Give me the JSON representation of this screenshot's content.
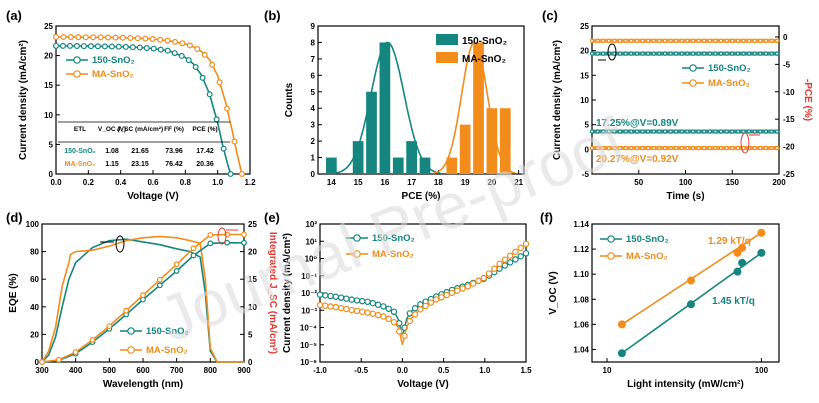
{
  "colors": {
    "teal": "#14857F",
    "orange": "#F28C1B",
    "red": "#E03A2F",
    "axis": "#000000"
  },
  "watermark": "Journal Pre-proof",
  "chart_data": [
    {
      "panel": "(a)",
      "type": "line",
      "xlabel": "Voltage (V)",
      "ylabel": "Current density (mA/cm²)",
      "xlim": [
        0,
        1.2
      ],
      "ylim": [
        0,
        25
      ],
      "xticks": [
        "0.0",
        "0.2",
        "0.4",
        "0.6",
        "0.8",
        "1.0",
        "1.2"
      ],
      "yticks": [
        "0",
        "5",
        "10",
        "15",
        "20",
        "25"
      ],
      "legend": [
        "150-SnO₂",
        "MA-SnO₂"
      ],
      "series": [
        {
          "name": "150-SnO₂",
          "color": "teal",
          "x": [
            0,
            0.1,
            0.2,
            0.3,
            0.4,
            0.5,
            0.6,
            0.7,
            0.8,
            0.85,
            0.9,
            0.95,
            1.0,
            1.03,
            1.06,
            1.08
          ],
          "y": [
            21.65,
            21.63,
            21.6,
            21.55,
            21.5,
            21.4,
            21.2,
            20.8,
            19.7,
            18.6,
            16.7,
            13.5,
            8.6,
            5.0,
            1.8,
            0
          ]
        },
        {
          "name": "MA-SnO₂",
          "color": "orange",
          "x": [
            0,
            0.1,
            0.2,
            0.3,
            0.4,
            0.5,
            0.6,
            0.7,
            0.8,
            0.85,
            0.9,
            0.95,
            1.0,
            1.05,
            1.09,
            1.12,
            1.15
          ],
          "y": [
            23.15,
            23.13,
            23.1,
            23.07,
            23.02,
            22.95,
            22.8,
            22.5,
            22.0,
            21.5,
            20.7,
            19.3,
            16.6,
            12.0,
            7.3,
            3.4,
            0
          ]
        }
      ],
      "table": {
        "headers": [
          "ETL",
          "V_OC (V)",
          "J_SC (mA/cm²)",
          "FF (%)",
          "PCE (%)"
        ],
        "rows": [
          [
            "150-SnO₂",
            "1.08",
            "21.65",
            "73.96",
            "17.42"
          ],
          [
            "MA-SnO₂",
            "1.15",
            "23.15",
            "76.42",
            "20.36"
          ]
        ]
      }
    },
    {
      "panel": "(b)",
      "type": "bar",
      "xlabel": "PCE (%)",
      "ylabel": "Counts",
      "xlim": [
        13.5,
        21.2
      ],
      "ylim": [
        0,
        9
      ],
      "xticks": [
        "14",
        "15",
        "16",
        "17",
        "18",
        "19",
        "20",
        "21"
      ],
      "yticks": [
        "0",
        "1",
        "2",
        "3",
        "4",
        "5",
        "6",
        "7",
        "8",
        "9"
      ],
      "legend": [
        "150-SnO₂",
        "MA-SnO₂"
      ],
      "series": [
        {
          "name": "150-SnO₂",
          "color": "teal",
          "bins": [
            14,
            15,
            15.5,
            16,
            16.5,
            17,
            17.5
          ],
          "counts": [
            1,
            2,
            5,
            8,
            1,
            2,
            1
          ],
          "fit_mean": 16.1,
          "fit_sigma": 0.62,
          "fit_peak": 8
        },
        {
          "name": "MA-SnO₂",
          "color": "orange",
          "bins": [
            18.5,
            19,
            19.5,
            20,
            20.5
          ],
          "counts": [
            1,
            3,
            8,
            4,
            4
          ],
          "fit_mean": 19.35,
          "fit_sigma": 0.48,
          "fit_peak": 8
        }
      ]
    },
    {
      "panel": "(c)",
      "type": "line",
      "xlabel": "Time (s)",
      "ylabel": "Current density (mA/cm²)",
      "ylabel_right": "-PCE (%)",
      "xlim": [
        0,
        200
      ],
      "ylim": [
        -5,
        25
      ],
      "ylim_right": [
        -25,
        2
      ],
      "xticks": [
        "50",
        "100",
        "150",
        "200"
      ],
      "yticks": [
        "-5",
        "0",
        "5",
        "10",
        "15",
        "20",
        "25"
      ],
      "yticks_right": [
        "-25",
        "-20",
        "-15",
        "-10",
        "-5",
        "0"
      ],
      "legend": [
        "150-SnO₂",
        "MA-SnO₂"
      ],
      "annotations": [
        "17.25%@V=0.89V",
        "20.27%@V=0.92V"
      ],
      "series": [
        {
          "name": "150-SnO₂ J",
          "color": "teal",
          "axis": "left",
          "value": 19.4
        },
        {
          "name": "MA-SnO₂ J",
          "color": "orange",
          "axis": "left",
          "value": 22.0
        },
        {
          "name": "150-SnO₂ PCE",
          "color": "teal",
          "axis": "right",
          "value": -17.25
        },
        {
          "name": "MA-SnO₂ PCE",
          "color": "orange",
          "axis": "right",
          "value": -20.27
        }
      ]
    },
    {
      "panel": "(d)",
      "type": "line",
      "xlabel": "Wavelength (nm)",
      "ylabel": "EQE (%)",
      "ylabel_right": "Integrated J_SC (mA/cm²)",
      "xlim": [
        300,
        900
      ],
      "ylim": [
        0,
        100
      ],
      "ylim_right": [
        0,
        25
      ],
      "xticks": [
        "300",
        "400",
        "500",
        "600",
        "700",
        "800",
        "900"
      ],
      "yticks": [
        "0",
        "20",
        "40",
        "60",
        "80",
        "100"
      ],
      "yticks_right": [
        "0",
        "5",
        "10",
        "15",
        "20",
        "25"
      ],
      "legend": [
        "150-SnO₂",
        "MA-SnO₂"
      ],
      "series": [
        {
          "name": "150-SnO₂ EQE",
          "color": "teal",
          "axis": "left",
          "x": [
            300,
            320,
            340,
            360,
            380,
            400,
            450,
            500,
            550,
            600,
            650,
            700,
            740,
            770,
            785,
            800,
            820,
            900
          ],
          "y": [
            0,
            5,
            18,
            40,
            60,
            72,
            83,
            88,
            89,
            87,
            85,
            82,
            80,
            76,
            50,
            8,
            0,
            0
          ]
        },
        {
          "name": "MA-SnO₂ EQE",
          "color": "orange",
          "axis": "left",
          "x": [
            300,
            320,
            340,
            360,
            380,
            385,
            400,
            450,
            500,
            550,
            600,
            650,
            700,
            740,
            770,
            785,
            800,
            820,
            900
          ],
          "y": [
            0,
            8,
            25,
            55,
            72,
            78,
            80,
            81,
            84,
            88,
            90,
            91,
            90,
            88,
            86,
            60,
            10,
            0,
            0
          ]
        },
        {
          "name": "150-SnO₂ Integrated J_SC",
          "color": "teal",
          "axis": "right",
          "x": [
            300,
            350,
            400,
            450,
            500,
            550,
            600,
            650,
            700,
            750,
            800,
            850,
            900
          ],
          "y": [
            0,
            0.3,
            1.5,
            3.6,
            6.0,
            8.6,
            11.3,
            13.9,
            16.5,
            19.3,
            21.5,
            21.6,
            21.6
          ]
        },
        {
          "name": "MA-SnO₂ Integrated J_SC",
          "color": "orange",
          "axis": "right",
          "x": [
            300,
            350,
            400,
            450,
            500,
            550,
            600,
            650,
            700,
            750,
            800,
            850,
            900
          ],
          "y": [
            0,
            0.4,
            1.8,
            4.0,
            6.5,
            9.3,
            12.1,
            14.9,
            17.7,
            20.6,
            23.0,
            23.1,
            23.1
          ]
        }
      ]
    },
    {
      "panel": "(e)",
      "type": "scatter",
      "xlabel": "Voltage (V)",
      "ylabel": "Current density (mA/cm²)",
      "xlim": [
        -1.0,
        1.5
      ],
      "ylog": true,
      "ylim_exp": [
        -6,
        2
      ],
      "xticks": [
        "-1.0",
        "-0.5",
        "0.0",
        "0.5",
        "1.0",
        "1.5"
      ],
      "yticks": [
        "10⁻⁶",
        "10⁻⁵",
        "10⁻⁴",
        "10⁻³",
        "10⁻²",
        "10⁻¹",
        "10⁰",
        "10¹",
        "10²"
      ],
      "legend": [
        "150-SnO₂",
        "MA-SnO₂"
      ],
      "series": [
        {
          "name": "150-SnO₂",
          "color": "teal",
          "x": [
            -1.0,
            -0.8,
            -0.6,
            -0.4,
            -0.2,
            -0.1,
            -0.05,
            0,
            0.05,
            0.1,
            0.2,
            0.4,
            0.6,
            0.8,
            1.0,
            1.2,
            1.5
          ],
          "y": [
            0.008,
            0.006,
            0.004,
            0.003,
            0.0015,
            0.0008,
            0.0003,
            3e-05,
            0.0003,
            0.0008,
            0.002,
            0.006,
            0.015,
            0.03,
            0.07,
            0.3,
            2
          ]
        },
        {
          "name": "MA-SnO₂",
          "color": "orange",
          "x": [
            -1.0,
            -0.8,
            -0.6,
            -0.4,
            -0.2,
            -0.1,
            -0.05,
            0,
            0.05,
            0.1,
            0.2,
            0.4,
            0.6,
            0.8,
            1.0,
            1.2,
            1.5
          ],
          "y": [
            0.002,
            0.0015,
            0.001,
            0.0007,
            0.0004,
            0.0002,
            0.0001,
            1e-05,
            0.0001,
            0.0003,
            0.001,
            0.004,
            0.01,
            0.025,
            0.08,
            0.6,
            7
          ]
        }
      ]
    },
    {
      "panel": "(f)",
      "type": "scatter",
      "xlabel": "Light intensity (mW/cm²)",
      "ylabel": "V_OC (V)",
      "xlog": true,
      "xlim": [
        8,
        130
      ],
      "ylim": [
        1.03,
        1.14
      ],
      "xticks": [
        "10",
        "100"
      ],
      "yticks": [
        "1.04",
        "1.06",
        "1.08",
        "1.10",
        "1.12",
        "1.14"
      ],
      "legend": [
        "150-SnO₂",
        "MA-SnO₂"
      ],
      "annotations": [
        "1.29 kT/q",
        "1.45 kT/q"
      ],
      "series": [
        {
          "name": "150-SnO₂",
          "color": "teal",
          "x": [
            12.5,
            35,
            70,
            75,
            100
          ],
          "y": [
            1.037,
            1.076,
            1.102,
            1.109,
            1.117
          ],
          "fit_x": [
            12.5,
            100
          ],
          "fit_y": [
            1.037,
            1.117
          ]
        },
        {
          "name": "MA-SnO₂",
          "color": "orange",
          "x": [
            12.5,
            35,
            70,
            75,
            100
          ],
          "y": [
            1.06,
            1.095,
            1.117,
            1.121,
            1.133
          ],
          "fit_x": [
            12.5,
            100
          ],
          "fit_y": [
            1.06,
            1.133
          ]
        }
      ]
    }
  ]
}
